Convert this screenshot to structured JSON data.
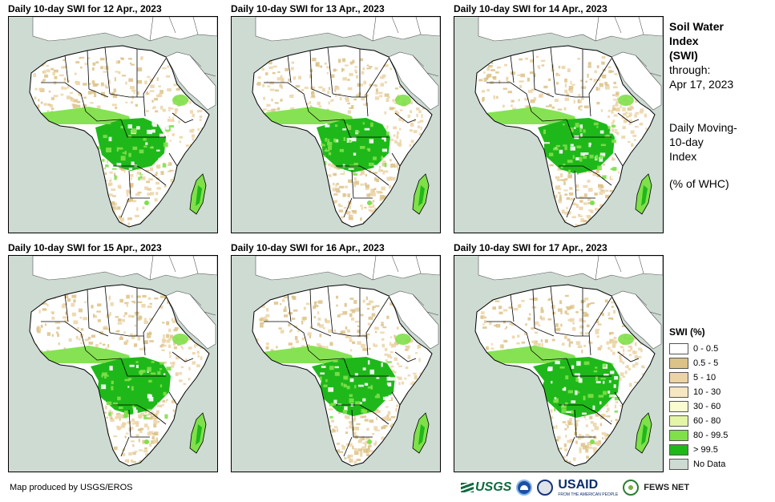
{
  "panels": [
    {
      "title": "Daily 10-day SWI for 12 Apr., 2023"
    },
    {
      "title": "Daily 10-day SWI for 13 Apr., 2023"
    },
    {
      "title": "Daily 10-day SWI for 14 Apr., 2023"
    },
    {
      "title": "Daily 10-day SWI for 15 Apr., 2023"
    },
    {
      "title": "Daily 10-day SWI for 16 Apr., 2023"
    },
    {
      "title": "Daily 10-day SWI for 17 Apr., 2023"
    }
  ],
  "info": {
    "title_line1": "Soil Water",
    "title_line2": "Index",
    "title_line3": "(SWI)",
    "through_label": "through:",
    "through_date": "Apr 17, 2023",
    "desc_line1": "Daily Moving-",
    "desc_line2": "10-day",
    "desc_line3": "Index",
    "units": "(% of WHC)"
  },
  "legend": {
    "title": "SWI (%)",
    "items": [
      {
        "label": "0 - 0.5",
        "color": "#ffffff"
      },
      {
        "label": "0.5 - 5",
        "color": "#dcc287"
      },
      {
        "label": "5 - 10",
        "color": "#ebd3a6"
      },
      {
        "label": "10 - 30",
        "color": "#f7e6c4"
      },
      {
        "label": "30 - 60",
        "color": "#fbfbd0"
      },
      {
        "label": "60 - 80",
        "color": "#e4f5a8"
      },
      {
        "label": "80 - 99.5",
        "color": "#7fe04a"
      },
      {
        "label": "> 99.5",
        "color": "#1fb81a"
      },
      {
        "label": "No Data",
        "color": "#cddbd3"
      }
    ]
  },
  "credit": "Map produced by USGS/EROS",
  "logos": {
    "usgs": "USGS",
    "usaid": "USAID",
    "usaid_tagline": "FROM THE AMERICAN PEOPLE",
    "fews": "FEWS NET"
  },
  "colors": {
    "ocean": "#cddbd3",
    "land_dry": "#ffffff",
    "tan": "#ebd3a6",
    "tan_dark": "#dcc287",
    "green_light": "#7fe04a",
    "green_dark": "#1fb81a",
    "border": "#000000"
  }
}
